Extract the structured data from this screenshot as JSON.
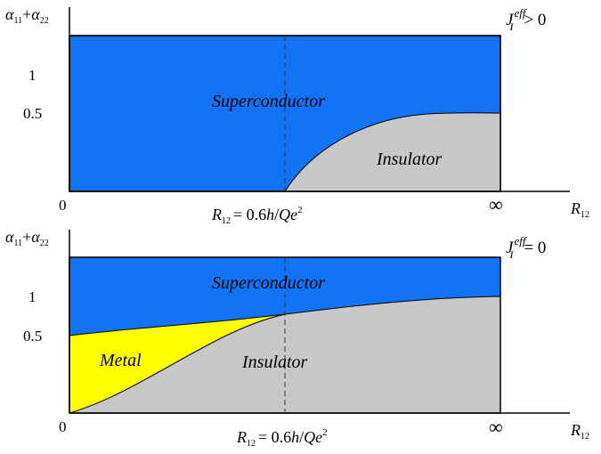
{
  "colors": {
    "superconductor": "#1273f5",
    "insulator": "#c8c8c8",
    "metal": "#ffff00",
    "axis": "#000000"
  },
  "top_panel": {
    "y_axis": {
      "alpha": "α",
      "sub1": "11",
      "plus": "+",
      "alpha2": "α",
      "sub2": "22"
    },
    "y_ticks": [
      "1",
      "0.5"
    ],
    "x_ticks": {
      "left": "0",
      "right": "∞"
    },
    "x_axis": {
      "r": "R",
      "sub": "12"
    },
    "condition": {
      "j": "J",
      "sup": "eff",
      "sub": "I",
      "rel": "> 0"
    },
    "regions": {
      "superconductor": "Superconductor",
      "insulator": "Insulator"
    },
    "critical_label": {
      "r": "R",
      "sub": "12",
      "eq": "= 0.6",
      "h": "h",
      "slash": "/",
      "qe": "Qe",
      "sup": "2"
    }
  },
  "bottom_panel": {
    "y_axis": {
      "alpha": "α",
      "sub1": "11",
      "plus": "+",
      "alpha2": "α",
      "sub2": "22"
    },
    "y_ticks": [
      "1",
      "0.5"
    ],
    "x_ticks": {
      "left": "0",
      "right": "∞"
    },
    "x_axis": {
      "r": "R",
      "sub": "12"
    },
    "condition": {
      "j": "J",
      "sup": "eff",
      "sub": "I",
      "rel": "= 0"
    },
    "regions": {
      "superconductor": "Superconductor",
      "insulator": "Insulator",
      "metal": "Metal"
    },
    "critical_label": {
      "r": "R",
      "sub": "12",
      "eq": "= 0.6",
      "h": "h",
      "slash": "/",
      "qe": "Qe",
      "sup": "2"
    }
  }
}
